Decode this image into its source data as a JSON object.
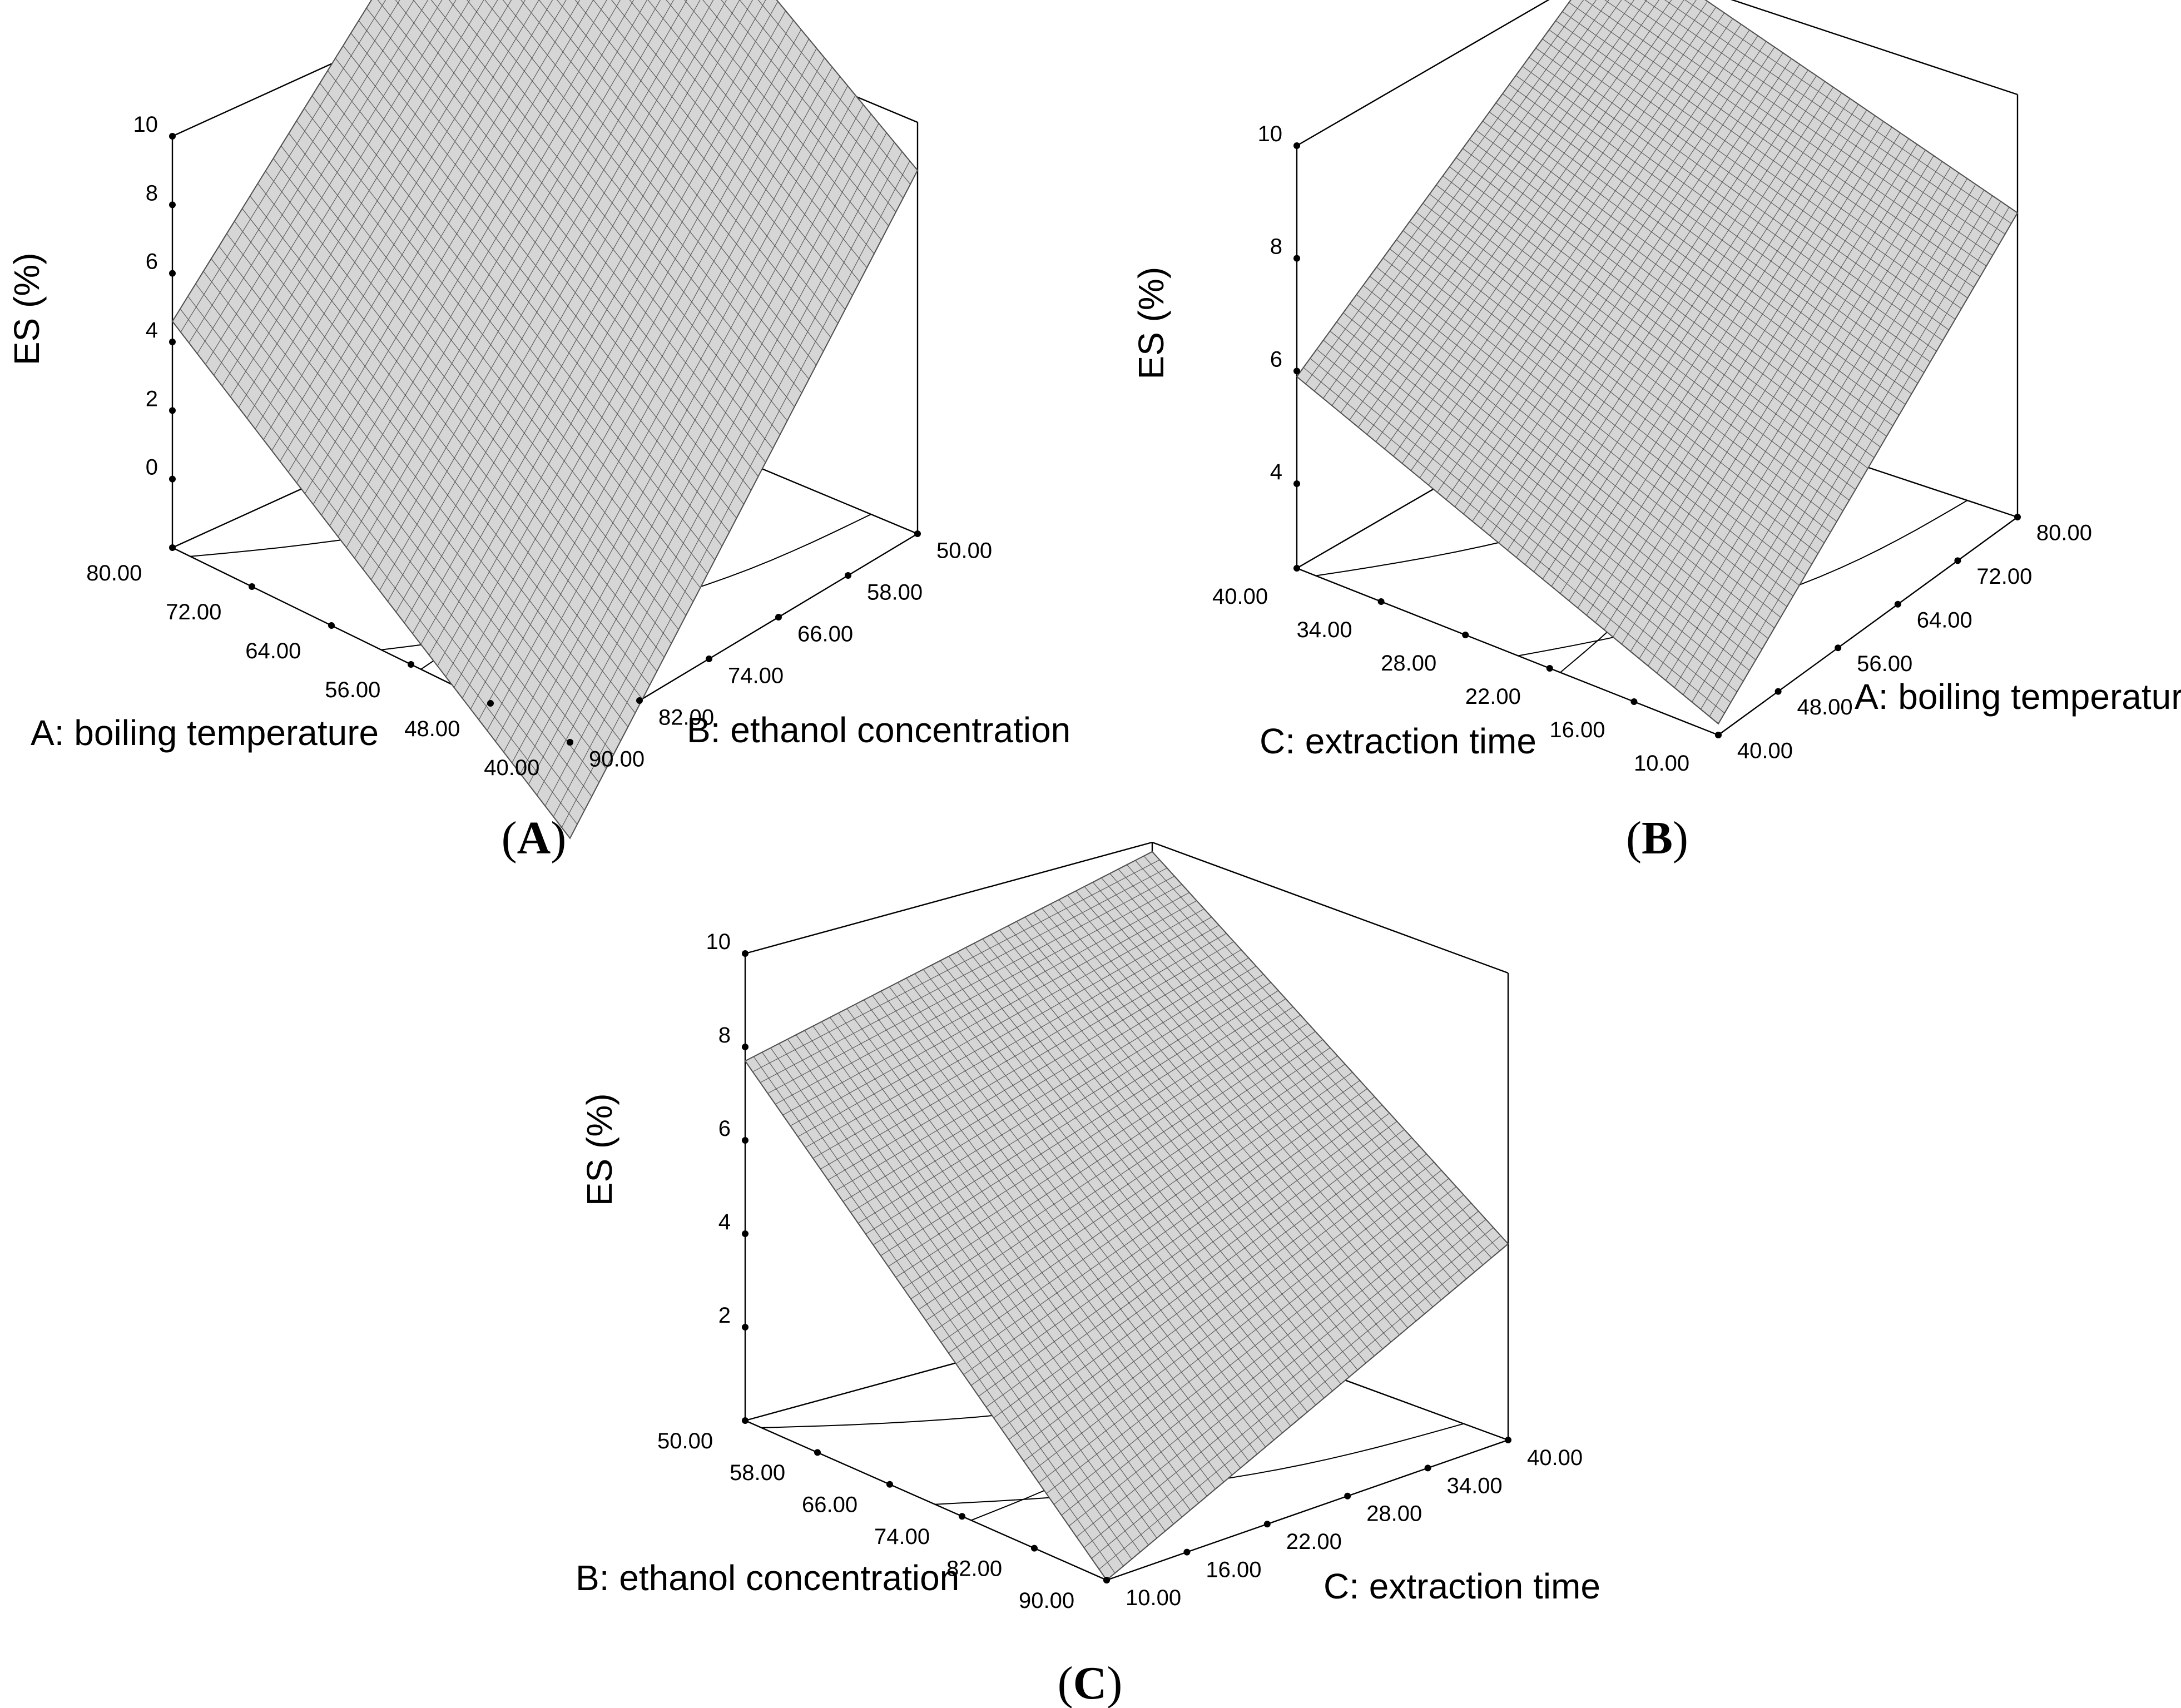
{
  "chart_data": [
    {
      "type": "surface3d",
      "panel_label": "A",
      "zlabel": "ES (%)",
      "z_ticks": [
        "0",
        "2",
        "4",
        "6",
        "8",
        "10"
      ],
      "z_range": [
        -2,
        10
      ],
      "left_axis": {
        "label": "A: boiling temperature",
        "ticks": [
          "80.00",
          "72.00",
          "64.00",
          "56.00",
          "48.00",
          "40.00"
        ]
      },
      "right_axis": {
        "label": "B: ethanol concentration",
        "ticks": [
          "90.00",
          "82.00",
          "74.00",
          "66.00",
          "58.00",
          "50.00"
        ]
      },
      "surface_corners_z": {
        "left": 4.6,
        "back": 17.2,
        "right": 8.6,
        "front": -4.8
      }
    },
    {
      "type": "surface3d",
      "panel_label": "B",
      "zlabel": "ES (%)",
      "z_ticks": [
        "4",
        "6",
        "8",
        "10"
      ],
      "z_range": [
        2.5,
        10
      ],
      "left_axis": {
        "label": "C: extraction time",
        "ticks": [
          "40.00",
          "34.00",
          "28.00",
          "22.00",
          "16.00",
          "10.00"
        ]
      },
      "right_axis": {
        "label": "A: boiling temperature",
        "ticks": [
          "40.00",
          "48.00",
          "56.00",
          "64.00",
          "72.00",
          "80.00"
        ]
      },
      "surface_corners_z": {
        "left": 5.9,
        "back": 10.4,
        "right": 7.9,
        "front": 2.7
      }
    },
    {
      "type": "surface3d",
      "panel_label": "C",
      "zlabel": "ES (%)",
      "z_ticks": [
        "2",
        "4",
        "6",
        "8",
        "10"
      ],
      "z_range": [
        0,
        10
      ],
      "left_axis": {
        "label": "B: ethanol concentration",
        "ticks": [
          "50.00",
          "58.00",
          "66.00",
          "74.00",
          "82.00",
          "90.00"
        ]
      },
      "right_axis": {
        "label": "C: extraction time",
        "ticks": [
          "10.00",
          "16.00",
          "22.00",
          "28.00",
          "34.00",
          "40.00"
        ]
      },
      "surface_corners_z": {
        "left": 7.7,
        "back": 9.8,
        "right": 4.2,
        "front": 0.0
      }
    }
  ]
}
